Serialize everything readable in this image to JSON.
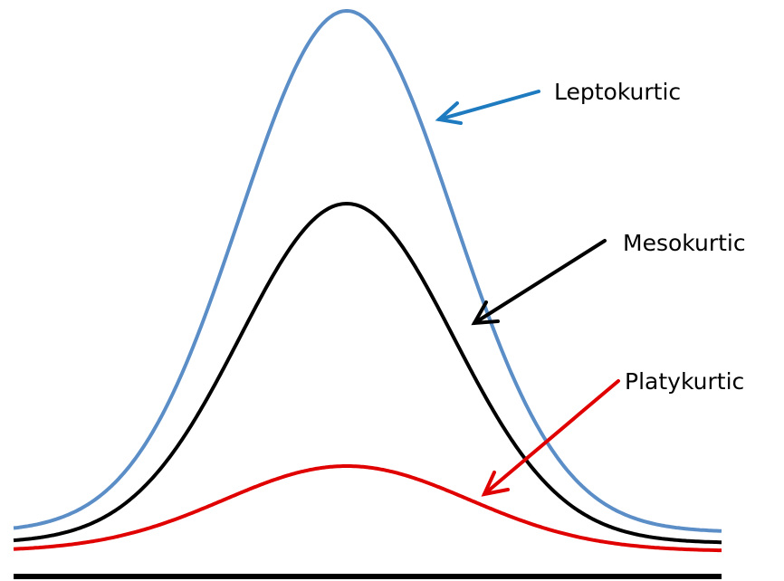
{
  "labels": {
    "leptokurtic": "Leptokurtic",
    "mesokurtic": "Mesokurtic",
    "platykurtic": "Platykurtic"
  }
}
